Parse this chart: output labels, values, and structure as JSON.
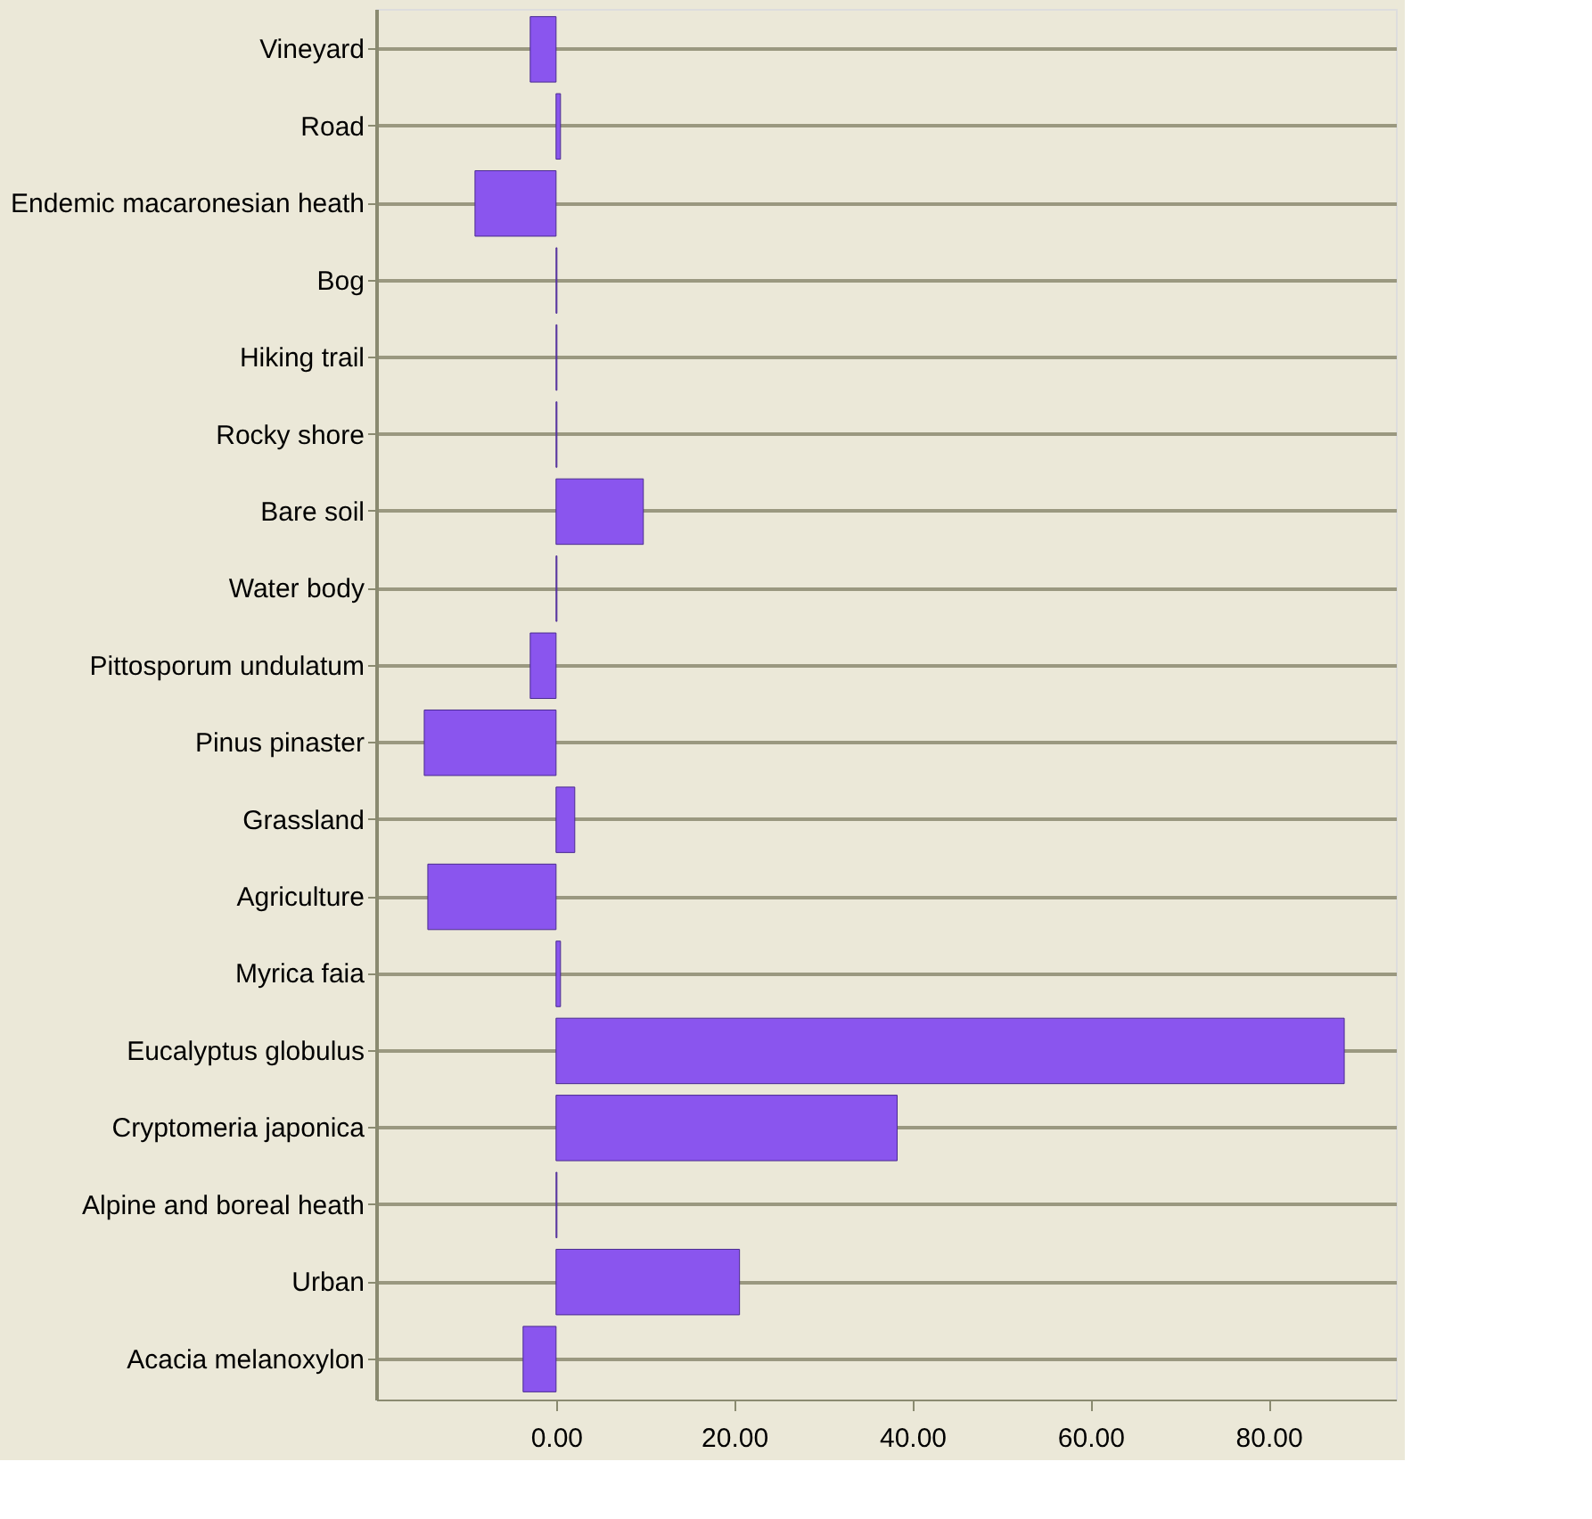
{
  "chart_data": {
    "type": "bar",
    "orientation": "horizontal",
    "categories": [
      "Vineyard",
      "Road",
      "Endemic macaronesian heath",
      "Bog",
      "Hiking trail",
      "Rocky shore",
      "Bare soil",
      "Water body",
      "Pittosporum undulatum",
      "Pinus pinaster",
      "Grassland",
      "Agriculture",
      "Myrica faia",
      "Eucalyptus globulus",
      "Cryptomeria japonica",
      "Alpine and boreal heath",
      "Urban",
      "Acacia melanoxylon"
    ],
    "values": [
      -2.9,
      0.5,
      -9.1,
      0.1,
      0.1,
      0.1,
      9.8,
      0.1,
      -2.9,
      -14.8,
      2.1,
      -14.4,
      0.5,
      88.5,
      38.3,
      0.1,
      20.6,
      -3.7
    ],
    "color": "#8a55ee",
    "xlim": [
      -20.2,
      94.3
    ],
    "xticks": [
      {
        "value": 0,
        "label": "0.00"
      },
      {
        "value": 20,
        "label": "20.00"
      },
      {
        "value": 40,
        "label": "40.00"
      },
      {
        "value": 60,
        "label": "60.00"
      },
      {
        "value": 80,
        "label": "80.00"
      }
    ],
    "grid": "y"
  }
}
